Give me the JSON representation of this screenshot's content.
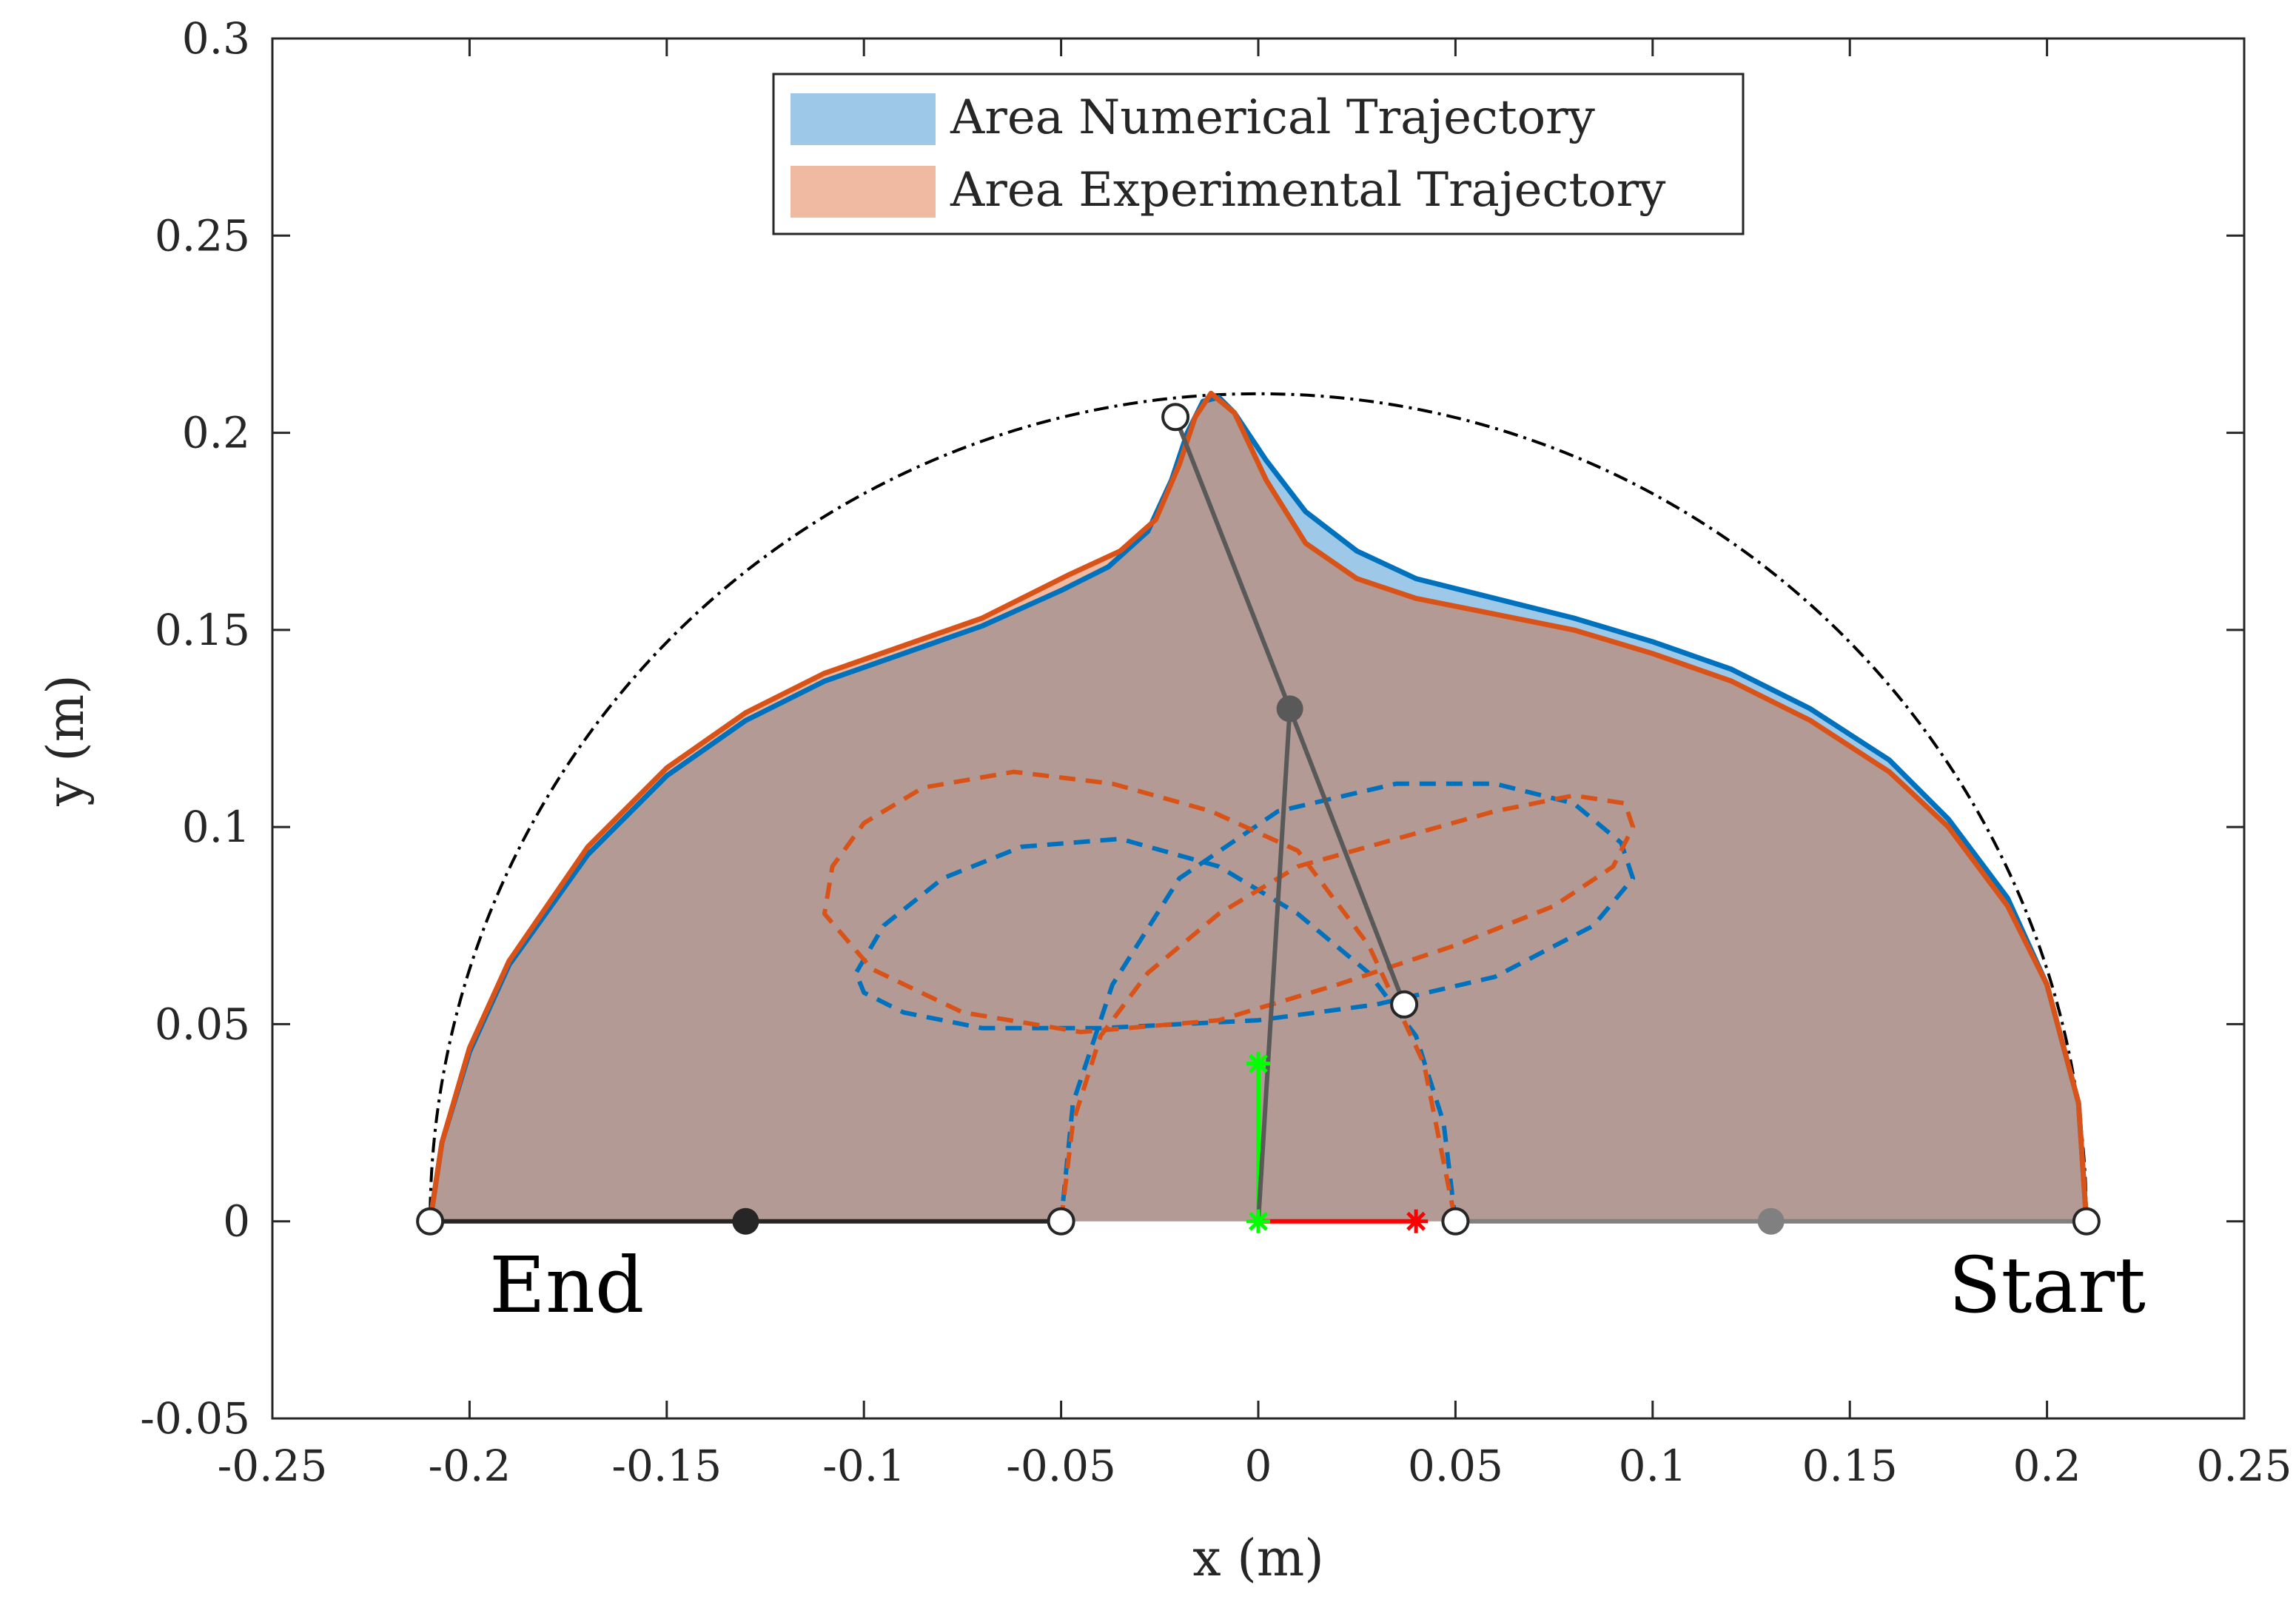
{
  "chart_data": {
    "type": "line",
    "xlabel": "x (m)",
    "ylabel": "y (m)",
    "xlim": [
      -0.25,
      0.25
    ],
    "ylim": [
      -0.05,
      0.3
    ],
    "xticks": [
      -0.25,
      -0.2,
      -0.15,
      -0.1,
      -0.05,
      0,
      0.05,
      0.1,
      0.15,
      0.2,
      0.25
    ],
    "yticks": [
      -0.05,
      0,
      0.05,
      0.1,
      0.15,
      0.2,
      0.25,
      0.3
    ],
    "xtick_labels": [
      "-0.25",
      "-0.2",
      "-0.15",
      "-0.1",
      "-0.05",
      "0",
      "0.05",
      "0.1",
      "0.15",
      "0.2",
      "0.25"
    ],
    "ytick_labels": [
      "-0.05",
      "0",
      "0.05",
      "0.1",
      "0.15",
      "0.2",
      "0.25",
      "0.3"
    ],
    "legend": {
      "position": "top-center",
      "entries": [
        {
          "label": "Area Numerical Trajectory",
          "color": "#9ec8e8"
        },
        {
          "label": "Area Experimental Trajectory",
          "color": "#f0b9a2"
        }
      ]
    },
    "annotations": [
      {
        "text": "End",
        "x": -0.195,
        "y": -0.023
      },
      {
        "text": "Start",
        "x": 0.175,
        "y": -0.023
      }
    ],
    "workspace_boundary": {
      "style": "dash-dot",
      "color": "#000000",
      "center": [
        0,
        0
      ],
      "radius": 0.21
    },
    "series": [
      {
        "name": "Numerical trajectory",
        "color": "#0072bd",
        "fill": "#9ec8e8",
        "x": [
          0.21,
          0.208,
          0.2,
          0.19,
          0.175,
          0.16,
          0.14,
          0.12,
          0.1,
          0.08,
          0.06,
          0.04,
          0.025,
          0.012,
          0.002,
          -0.006,
          -0.01,
          -0.014,
          -0.018,
          -0.022,
          -0.028,
          -0.038,
          -0.05,
          -0.07,
          -0.09,
          -0.11,
          -0.13,
          -0.15,
          -0.17,
          -0.19,
          -0.2,
          -0.207,
          -0.21
        ],
        "y": [
          0.0,
          0.03,
          0.06,
          0.082,
          0.102,
          0.117,
          0.13,
          0.14,
          0.147,
          0.153,
          0.158,
          0.163,
          0.17,
          0.18,
          0.193,
          0.205,
          0.209,
          0.208,
          0.2,
          0.188,
          0.175,
          0.166,
          0.16,
          0.151,
          0.144,
          0.137,
          0.127,
          0.113,
          0.093,
          0.065,
          0.043,
          0.02,
          0.0
        ]
      },
      {
        "name": "Experimental trajectory",
        "color": "#d95319",
        "fill": "#f0b9a2",
        "x": [
          0.21,
          0.208,
          0.2,
          0.19,
          0.175,
          0.16,
          0.14,
          0.12,
          0.1,
          0.08,
          0.06,
          0.04,
          0.025,
          0.012,
          0.002,
          -0.006,
          -0.012,
          -0.016,
          -0.02,
          -0.026,
          -0.035,
          -0.048,
          -0.07,
          -0.09,
          -0.11,
          -0.13,
          -0.15,
          -0.17,
          -0.19,
          -0.2,
          -0.207,
          -0.21
        ],
        "y": [
          0.0,
          0.03,
          0.06,
          0.08,
          0.1,
          0.114,
          0.127,
          0.137,
          0.144,
          0.15,
          0.154,
          0.158,
          0.163,
          0.172,
          0.188,
          0.205,
          0.21,
          0.204,
          0.192,
          0.178,
          0.17,
          0.164,
          0.153,
          0.146,
          0.139,
          0.129,
          0.115,
          0.095,
          0.066,
          0.044,
          0.02,
          0.0
        ]
      },
      {
        "name": "Numerical elbow path",
        "color": "#0072bd",
        "style": "dashed",
        "x": [
          0.05,
          0.047,
          0.04,
          0.028,
          0.01,
          -0.01,
          -0.035,
          -0.06,
          -0.08,
          -0.095,
          -0.102,
          -0.1,
          -0.09,
          -0.07,
          -0.04,
          0.0,
          0.03,
          0.06,
          0.085,
          0.095,
          0.092,
          0.08,
          0.06,
          0.035,
          0.005,
          -0.02,
          -0.037,
          -0.047,
          -0.05
        ],
        "y": [
          0.0,
          0.025,
          0.047,
          0.063,
          0.078,
          0.09,
          0.097,
          0.095,
          0.087,
          0.075,
          0.063,
          0.058,
          0.053,
          0.049,
          0.049,
          0.051,
          0.055,
          0.062,
          0.075,
          0.087,
          0.096,
          0.106,
          0.111,
          0.111,
          0.104,
          0.087,
          0.06,
          0.03,
          0.0
        ]
      },
      {
        "name": "Experimental elbow path",
        "color": "#d95319",
        "style": "dashed",
        "x": [
          -0.05,
          -0.047,
          -0.04,
          -0.028,
          -0.01,
          0.01,
          0.035,
          0.06,
          0.08,
          0.093,
          0.095,
          0.09,
          0.075,
          0.05,
          0.02,
          -0.01,
          -0.045,
          -0.075,
          -0.098,
          -0.11,
          -0.108,
          -0.1,
          -0.085,
          -0.062,
          -0.037,
          -0.012,
          0.01,
          0.028,
          0.042,
          0.05
        ],
        "y": [
          0.0,
          0.025,
          0.047,
          0.063,
          0.078,
          0.09,
          0.097,
          0.104,
          0.108,
          0.106,
          0.1,
          0.09,
          0.08,
          0.07,
          0.06,
          0.051,
          0.048,
          0.053,
          0.064,
          0.078,
          0.09,
          0.101,
          0.11,
          0.114,
          0.111,
          0.104,
          0.094,
          0.07,
          0.04,
          0.0
        ]
      }
    ],
    "links": [
      {
        "name": "start-proximal-link",
        "color": "#808080",
        "from": [
          0.05,
          0
        ],
        "to": [
          0.21,
          0
        ]
      },
      {
        "name": "end-proximal-link",
        "color": "#262626",
        "from": [
          -0.21,
          0
        ],
        "to": [
          -0.05,
          0
        ]
      },
      {
        "name": "base-link-red",
        "color": "#ff0000",
        "from": [
          0,
          0
        ],
        "to": [
          0.04,
          0
        ]
      },
      {
        "name": "base-link-green",
        "color": "#00ff00",
        "from": [
          0,
          0
        ],
        "to": [
          0,
          0.04
        ]
      },
      {
        "name": "upper-arm-link",
        "color": "#595959",
        "from": [
          -0.021,
          0.204
        ],
        "to": [
          0.008,
          0.13
        ]
      },
      {
        "name": "upper-arm-link-2",
        "color": "#595959",
        "from": [
          0.008,
          0.13
        ],
        "to": [
          0.037,
          0.055
        ]
      },
      {
        "name": "forearm-link",
        "color": "#595959",
        "from": [
          0.008,
          0.13
        ],
        "to": [
          0,
          0
        ]
      }
    ],
    "markers": [
      {
        "name": "open",
        "x": -0.21,
        "y": 0,
        "style": "open"
      },
      {
        "name": "open",
        "x": -0.05,
        "y": 0,
        "style": "open"
      },
      {
        "name": "open",
        "x": 0.05,
        "y": 0,
        "style": "open"
      },
      {
        "name": "open",
        "x": 0.21,
        "y": 0,
        "style": "open"
      },
      {
        "name": "open",
        "x": -0.021,
        "y": 0.204,
        "style": "open"
      },
      {
        "name": "open",
        "x": 0.037,
        "y": 0.055,
        "style": "open"
      },
      {
        "name": "filled-dark",
        "x": -0.13,
        "y": 0,
        "style": "filled",
        "color": "#262626"
      },
      {
        "name": "filled-gray",
        "x": 0.13,
        "y": 0,
        "style": "filled",
        "color": "#808080"
      },
      {
        "name": "filled-mid",
        "x": 0.008,
        "y": 0.13,
        "style": "filled",
        "color": "#595959"
      },
      {
        "name": "star-green-origin",
        "x": 0,
        "y": 0,
        "style": "star",
        "color": "#00ff00"
      },
      {
        "name": "star-green-top",
        "x": 0,
        "y": 0.04,
        "style": "star",
        "color": "#00ff00"
      },
      {
        "name": "star-red",
        "x": 0.04,
        "y": 0,
        "style": "star",
        "color": "#ff0000"
      }
    ],
    "overlap_fill_color": "#b39a94"
  }
}
